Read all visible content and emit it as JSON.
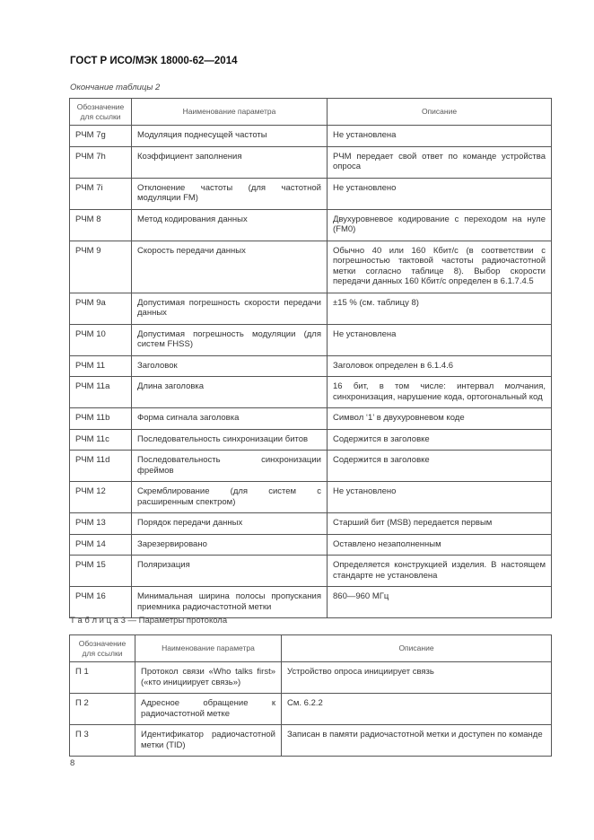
{
  "header": {
    "title": "ГОСТ Р ИСО/МЭК 18000-62—2014"
  },
  "table2": {
    "caption": "Окончание таблицы 2",
    "columns": [
      "Обозначение для ссылки",
      "Наименование параметра",
      "Описание"
    ],
    "rows": [
      [
        "РЧМ 7g",
        "Модуляция поднесущей частоты",
        "Не установлена"
      ],
      [
        "РЧМ 7h",
        "Коэффициент заполнения",
        "РЧМ передает свой ответ по команде устройства опроса"
      ],
      [
        "РЧМ 7i",
        "Отклонение частоты (для частотной модуляции FM)",
        "Не установлено"
      ],
      [
        "РЧМ 8",
        "Метод кодирования данных",
        "Двухуровневое кодирование с переходом на нуле (FM0)"
      ],
      [
        "РЧМ 9",
        "Скорость передачи данных",
        "Обычно 40 или 160 Кбит/с (в соответствии с погрешностью тактовой частоты радиочастотной метки согласно таблице 8). Выбор скорости передачи данных 160 Кбит/с определен в 6.1.7.4.5"
      ],
      [
        "РЧМ 9a",
        "Допустимая погрешность скорости передачи данных",
        "±15 % (см. таблицу 8)"
      ],
      [
        "РЧМ 10",
        "Допустимая погрешность модуляции (для систем FHSS)",
        "Не установлена"
      ],
      [
        "РЧМ 11",
        "Заголовок",
        "Заголовок определен в 6.1.4.6"
      ],
      [
        "РЧМ 11a",
        "Длина заголовка",
        "16 бит, в том числе: интервал молчания, синхронизация, нарушение кода, ортогональный код"
      ],
      [
        "РЧМ 11b",
        "Форма сигнала заголовка",
        "Символ ‘1’ в двухуровневом коде"
      ],
      [
        "РЧМ 11c",
        "Последовательность синхронизации битов",
        "Содержится в заголовке"
      ],
      [
        "РЧМ 11d",
        "Последовательность синхронизации фреймов",
        "Содержится в заголовке"
      ],
      [
        "РЧМ 12",
        "Скремблирование (для систем с расширенным спектром)",
        "Не установлено"
      ],
      [
        "РЧМ 13",
        "Порядок передачи данных",
        "Старший бит (MSB) передается первым"
      ],
      [
        "РЧМ 14",
        "Зарезервировано",
        "Оставлено незаполненным"
      ],
      [
        "РЧМ 15",
        "Поляризация",
        "Определяется конструкцией изделия. В настоящем стандарте не установлена"
      ],
      [
        "РЧМ 16",
        "Минимальная ширина полосы пропускания приемника радиочастотной метки",
        "860—960 МГц"
      ]
    ]
  },
  "table3": {
    "caption": "Т а б л и ц а  3 — Параметры протокола",
    "columns": [
      "Обозначение для ссылки",
      "Наименование параметра",
      "Описание"
    ],
    "rows": [
      [
        "П 1",
        "Протокол связи «Who talks first» («кто инициирует связь»)",
        "Устройство опроса инициирует связь"
      ],
      [
        "П 2",
        "Адресное обращение к радиочастотной метке",
        "См. 6.2.2"
      ],
      [
        "П 3",
        "Идентификатор радиочастотной метки (TID)",
        "Записан в памяти радиочастотной метки и доступен по команде"
      ]
    ]
  },
  "footer": {
    "page_number": "8"
  }
}
